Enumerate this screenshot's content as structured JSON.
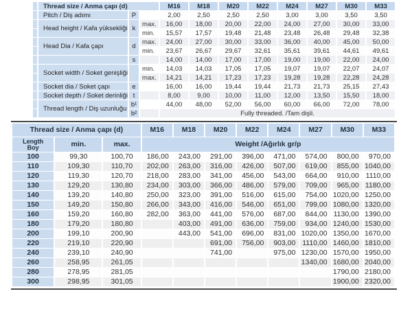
{
  "colors": {
    "header_blue": "#c7d9ee",
    "label_blue": "#cdddf0",
    "length_blue": "#ccdcef",
    "row_alt_gray": "#efefef",
    "dark_rule": "#45484c"
  },
  "sizes": [
    "M16",
    "M18",
    "M20",
    "M22",
    "M24",
    "M27",
    "M30",
    "M33"
  ],
  "specs_table": {
    "corner_label": "Thread size / Anma çapı (d)",
    "fully_threaded_note": "Fully threaded. /Tam dişli.",
    "groups": [
      {
        "label": "Pitch / Diş adımı",
        "symbol": "P",
        "rows": [
          {
            "sub": "",
            "values": [
              "2,00",
              "2,50",
              "2,50",
              "2,50",
              "3,00",
              "3,00",
              "3,50",
              "3,50"
            ]
          }
        ]
      },
      {
        "label": "Head height / Kafa yüksekliği",
        "symbol": "k",
        "rows": [
          {
            "sub": "max.",
            "values": [
              "16,00",
              "18,00",
              "20,00",
              "22,00",
              "24,00",
              "27,00",
              "30,00",
              "33,00"
            ]
          },
          {
            "sub": "min.",
            "values": [
              "15,57",
              "17,57",
              "19,48",
              "21,48",
              "23,48",
              "26,48",
              "29,48",
              "32,38"
            ]
          }
        ]
      },
      {
        "label": "Head Dia / Kafa çapı",
        "symbol": "d",
        "rows": [
          {
            "sub": "max.",
            "values": [
              "24,00",
              "27,00",
              "30,00",
              "33,00",
              "36,00",
              "40,00",
              "45,00",
              "50,00"
            ]
          },
          {
            "sub": "min.",
            "values": [
              "23,67",
              "26,67",
              "29,67",
              "32,61",
              "35,61",
              "39,61",
              "44,61",
              "49,61"
            ]
          }
        ]
      },
      {
        "label": "",
        "symbol": "s",
        "rows": [
          {
            "sub": "",
            "values": [
              "14,00",
              "14,00",
              "17,00",
              "17,00",
              "19,00",
              "19,00",
              "22,00",
              "24,00"
            ]
          }
        ]
      },
      {
        "label": "Socket width / Soket genişliği",
        "symbol": "",
        "rows": [
          {
            "sub": "min.",
            "values": [
              "14,03",
              "14,03",
              "17,05",
              "17,05",
              "19,07",
              "19,07",
              "22,07",
              "24,07"
            ]
          },
          {
            "sub": "max.",
            "values": [
              "14,21",
              "14,21",
              "17,23",
              "17,23",
              "19,28",
              "19,28",
              "22,28",
              "24,28"
            ]
          }
        ]
      },
      {
        "label": "Socket dia / Soket çapı",
        "symbol": "e",
        "rows": [
          {
            "sub": "",
            "values": [
              "16,00",
              "16,00",
              "19,44",
              "19,44",
              "21,73",
              "21,73",
              "25,15",
              "27,43"
            ]
          }
        ]
      },
      {
        "label": "Socket depth / Soket derinliği",
        "symbol": "t",
        "rows": [
          {
            "sub": "",
            "values": [
              "8,00",
              "9,00",
              "10,00",
              "11,00",
              "12,00",
              "13,50",
              "15,50",
              "18,00"
            ]
          }
        ]
      },
      {
        "label": "Thread length / Diş uzunluğu",
        "rows": [
          {
            "symbol": "b¹",
            "sub": "",
            "values": [
              "44,00",
              "48,00",
              "52,00",
              "56,00",
              "60,00",
              "66,00",
              "72,00",
              "78,00"
            ]
          },
          {
            "symbol": "b²",
            "sub": "",
            "note": "Fully threaded. /Tam dişli."
          }
        ]
      }
    ]
  },
  "weight_table": {
    "corner_label": "Thread size / Anma çapı (d)",
    "length_label": "Length",
    "boy_label": "Boy",
    "min_label": "min.",
    "max_label": "max.",
    "weight_label": "Weight /Ağırlık gr/p",
    "rows": [
      {
        "length": "100",
        "min": "99,30",
        "max": "100,70",
        "weights": [
          "186,00",
          "243,00",
          "291,00",
          "396,00",
          "471,00",
          "574,00",
          "800,00",
          "970,00"
        ]
      },
      {
        "length": "110",
        "min": "109,30",
        "max": "110,70",
        "weights": [
          "202,00",
          "263,00",
          "316,00",
          "426,00",
          "507,00",
          "619,00",
          "855,00",
          "1040,00"
        ]
      },
      {
        "length": "120",
        "min": "119,30",
        "max": "120,70",
        "weights": [
          "218,00",
          "283,00",
          "341,00",
          "456,00",
          "543,00",
          "664,00",
          "910,00",
          "1110,00"
        ]
      },
      {
        "length": "130",
        "min": "129,20",
        "max": "130,80",
        "weights": [
          "234,00",
          "303,00",
          "366,00",
          "486,00",
          "579,00",
          "709,00",
          "965,00",
          "1180,00"
        ]
      },
      {
        "length": "140",
        "min": "139,20",
        "max": "140,80",
        "weights": [
          "250,00",
          "323,00",
          "391,00",
          "516,00",
          "615,00",
          "754,00",
          "1020,00",
          "1250,00"
        ]
      },
      {
        "length": "150",
        "min": "149,20",
        "max": "150,80",
        "weights": [
          "266,00",
          "343,00",
          "416,00",
          "546,00",
          "651,00",
          "799,00",
          "1080,00",
          "1320,00"
        ]
      },
      {
        "length": "160",
        "min": "159,20",
        "max": "160,80",
        "weights": [
          "282,00",
          "363,00",
          "441,00",
          "576,00",
          "687,00",
          "844,00",
          "1130,00",
          "1390,00"
        ]
      },
      {
        "length": "180",
        "min": "179,20",
        "max": "180,80",
        "weights": [
          "",
          "403,00",
          "491,00",
          "636,00",
          "759,00",
          "934,00",
          "1240,00",
          "1530,00"
        ]
      },
      {
        "length": "200",
        "min": "199,10",
        "max": "200,90",
        "weights": [
          "",
          "443,00",
          "541,00",
          "696,00",
          "831,00",
          "1020,00",
          "1350,00",
          "1670,00"
        ]
      },
      {
        "length": "220",
        "min": "219,10",
        "max": "220,90",
        "weights": [
          "",
          "",
          "691,00",
          "756,00",
          "903,00",
          "1110,00",
          "1460,00",
          "1810,00"
        ]
      },
      {
        "length": "240",
        "min": "239,10",
        "max": "240,90",
        "weights": [
          "",
          "",
          "741,00",
          "",
          "975,00",
          "1230,00",
          "1570,00",
          "1950,00"
        ]
      },
      {
        "length": "260",
        "min": "258,95",
        "max": "261,05",
        "weights": [
          "",
          "",
          "",
          "",
          "",
          "1340,00",
          "1680,00",
          "2040,00"
        ]
      },
      {
        "length": "280",
        "min": "278,95",
        "max": "281,05",
        "weights": [
          "",
          "",
          "",
          "",
          "",
          "",
          "1790,00",
          "2180,00"
        ]
      },
      {
        "length": "300",
        "min": "298,95",
        "max": "301,05",
        "weights": [
          "",
          "",
          "",
          "",
          "",
          "",
          "1900,00",
          "2320,00"
        ]
      }
    ]
  }
}
